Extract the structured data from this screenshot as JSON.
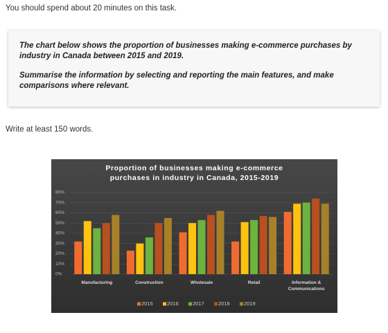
{
  "instruction": "You should spend about 20 minutes on this task.",
  "task": {
    "description": "The chart below shows the proportion of businesses making e-commerce purchases by industry in Canada between 2015 and 2019.",
    "prompt": "Summarise the information by selecting and reporting the main features, and make comparisons where relevant."
  },
  "word_count_note": "Write at least 150 words.",
  "chart_data": {
    "type": "bar",
    "title": "Proportion of businesses making e-commerce purchases in industry in Canada, 2015-2019",
    "categories": [
      "Manufacturing",
      "Construction",
      "Wholesale",
      "Retail",
      "Information & Communications"
    ],
    "series": [
      {
        "name": "2015",
        "color": "#f26b2e",
        "values": [
          32,
          23,
          41,
          32,
          61
        ]
      },
      {
        "name": "2016",
        "color": "#ffc20e",
        "values": [
          52,
          30,
          50,
          51,
          69
        ]
      },
      {
        "name": "2017",
        "color": "#6cb33f",
        "values": [
          45,
          36,
          53,
          53,
          70
        ]
      },
      {
        "name": "2018",
        "color": "#b8501f",
        "values": [
          50,
          50,
          58,
          57,
          74
        ]
      },
      {
        "name": "2019",
        "color": "#a8802a",
        "values": [
          58,
          55,
          62,
          56,
          69
        ]
      }
    ],
    "ylim": [
      0,
      80
    ],
    "yticks": [
      {
        "value": 0,
        "label": "0%"
      },
      {
        "value": 10,
        "label": "10%"
      },
      {
        "value": 20,
        "label": "20%"
      },
      {
        "value": 30,
        "label": "30%"
      },
      {
        "value": 40,
        "label": "40%"
      },
      {
        "value": 50,
        "label": "50%"
      },
      {
        "value": 60,
        "label": "60%"
      },
      {
        "value": 70,
        "label": "70%"
      },
      {
        "value": 80,
        "label": "80%"
      }
    ],
    "grid": true
  }
}
